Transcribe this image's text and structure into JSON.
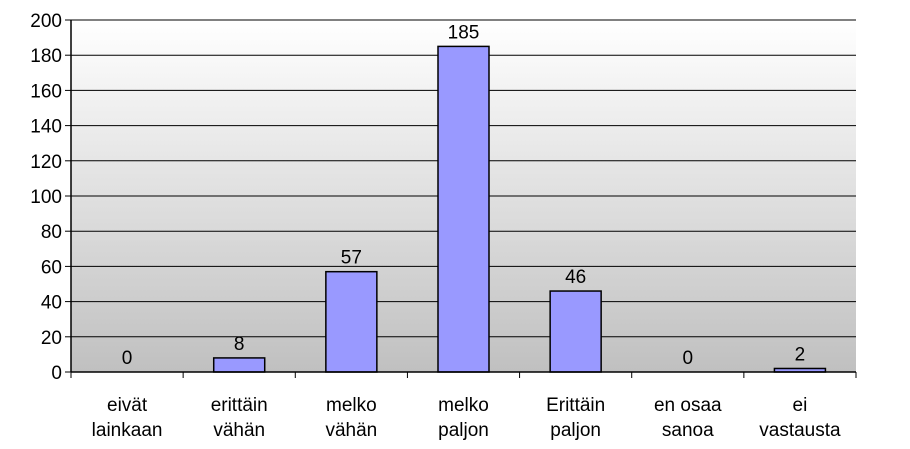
{
  "chart_data": {
    "type": "bar",
    "title": "",
    "xlabel": "",
    "ylabel": "",
    "categories": [
      [
        "eivät",
        "lainkaan"
      ],
      [
        "erittäin",
        "vähän"
      ],
      [
        "melko",
        "vähän"
      ],
      [
        "melko",
        "paljon"
      ],
      [
        "Erittäin",
        "paljon"
      ],
      [
        "en osaa",
        "sanoa"
      ],
      [
        "ei",
        "vastausta"
      ]
    ],
    "values": [
      0,
      8,
      57,
      185,
      46,
      0,
      2
    ],
    "data_labels": [
      "0",
      "8",
      "57",
      "185",
      "46",
      "0",
      "2"
    ],
    "ylim": [
      0,
      200
    ],
    "yticks": [
      0,
      20,
      40,
      60,
      80,
      100,
      120,
      140,
      160,
      180,
      200
    ],
    "grid": true,
    "legend": "none",
    "colors": {
      "bar_fill": "#9999ff",
      "bar_stroke": "#000000",
      "plot_bg_top": "#ffffff",
      "plot_bg_bottom": "#c0c0c0",
      "grid": "#000000",
      "axis": "#000000"
    }
  }
}
